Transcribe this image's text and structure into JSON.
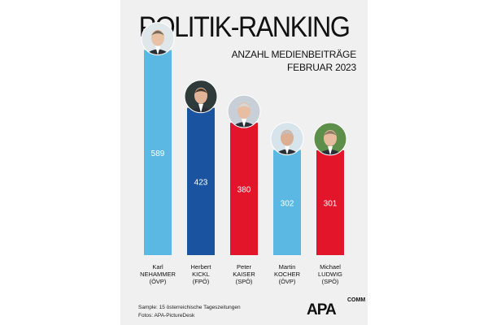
{
  "chart_data": {
    "type": "bar",
    "title": "POLITIK-RANKING",
    "subtitle_lines": [
      "ANZAHL MEDIENBEITRÄGE",
      "FEBRUAR 2023"
    ],
    "categories": [
      [
        "Karl",
        "NEHAMMER",
        "(ÖVP)"
      ],
      [
        "Herbert",
        "KICKL",
        "(FPÖ)"
      ],
      [
        "Peter",
        "KAISER",
        "(SPÖ)"
      ],
      [
        "Martin",
        "KOCHER",
        "(ÖVP)"
      ],
      [
        "Michael",
        "LUDWIG",
        "(SPÖ)"
      ]
    ],
    "values": [
      589,
      423,
      380,
      302,
      301
    ],
    "value_labels": [
      "589",
      "423",
      "380",
      "302",
      "301"
    ],
    "colors": [
      "#5bb8e3",
      "#1a54a0",
      "#e3152b",
      "#5bb8e3",
      "#e3152b"
    ],
    "ylim": [
      0,
      700
    ],
    "grid": false,
    "legend": "none",
    "photos": [
      "portrait-nehammer",
      "portrait-kickl",
      "portrait-kaiser",
      "portrait-kocher",
      "portrait-ludwig"
    ]
  },
  "footer": {
    "sample": "Sample: 15 österreichische Tageszeitungen",
    "photos": "Fotos: APA-PictureDesk"
  },
  "logo": {
    "text": "APA",
    "suffix": "COMM"
  }
}
